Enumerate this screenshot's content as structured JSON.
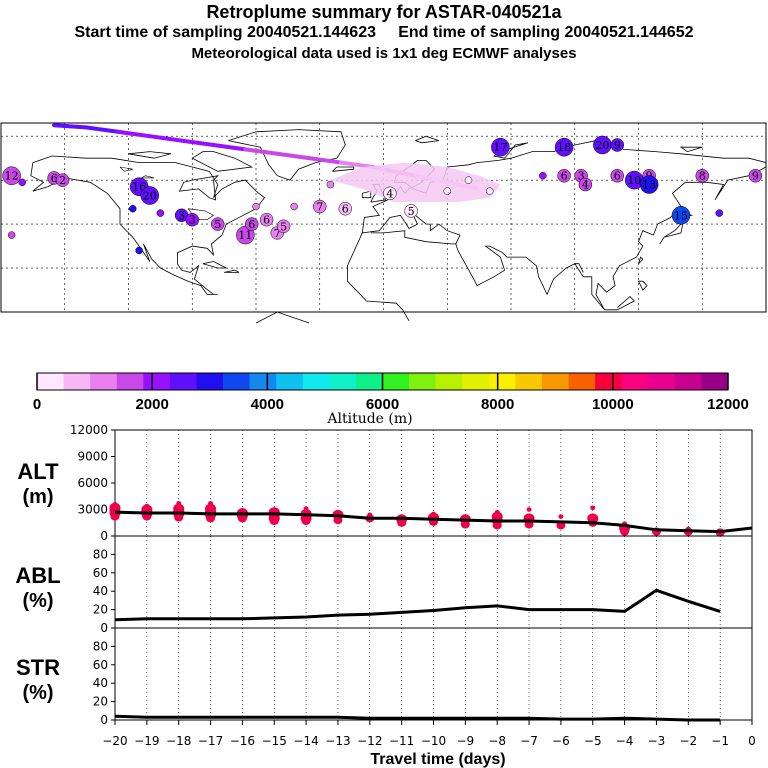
{
  "header": {
    "title": "Retroplume summary for ASTAR-040521a",
    "start_label": "Start time of sampling 20040521.144623",
    "end_label": "End time of sampling 20040521.144652",
    "met_label": "Meteorological data used is 1x1 deg ECMWF analyses"
  },
  "map": {
    "land_color": "#ffffff",
    "clusters": [
      {
        "label": "12",
        "lon": -175,
        "lat": 62,
        "alt": 1600
      },
      {
        "label": "",
        "lon": -170,
        "lat": 59,
        "alt": 2100
      },
      {
        "label": "6",
        "lon": -155,
        "lat": 61,
        "alt": 1700
      },
      {
        "label": "2",
        "lon": -151,
        "lat": 60,
        "alt": 1800
      },
      {
        "label": "16",
        "lon": -115,
        "lat": 57,
        "alt": 2400
      },
      {
        "label": "",
        "lon": -118,
        "lat": 47,
        "alt": 3200
      },
      {
        "label": "20",
        "lon": -110,
        "lat": 53,
        "alt": 2600
      },
      {
        "label": "",
        "lon": -105,
        "lat": 45,
        "alt": 2300
      },
      {
        "label": "3",
        "lon": -95,
        "lat": 44,
        "alt": 2500
      },
      {
        "label": "3",
        "lon": -90,
        "lat": 42,
        "alt": 1900
      },
      {
        "label": "5",
        "lon": -78,
        "lat": 40,
        "alt": 1700
      },
      {
        "label": "11",
        "lon": -65,
        "lat": 35,
        "alt": 1400
      },
      {
        "label": "6",
        "lon": -62,
        "lat": 40,
        "alt": 1500
      },
      {
        "label": "6",
        "lon": -55,
        "lat": 42,
        "alt": 1300
      },
      {
        "label": "7",
        "lon": -50,
        "lat": 36,
        "alt": 1200
      },
      {
        "label": "5",
        "lon": -47,
        "lat": 39,
        "alt": 1300
      },
      {
        "label": "",
        "lon": -42,
        "lat": 48,
        "alt": 1200
      },
      {
        "label": "",
        "lon": -60,
        "lat": 48,
        "alt": 1100
      },
      {
        "label": "7",
        "lon": -30,
        "lat": 48,
        "alt": 1000
      },
      {
        "label": "",
        "lon": -25,
        "lat": 58,
        "alt": 1300
      },
      {
        "label": "6",
        "lon": -18,
        "lat": 47,
        "alt": 600
      },
      {
        "label": "4",
        "lon": 3,
        "lat": 54,
        "alt": 400
      },
      {
        "label": "5",
        "lon": 13,
        "lat": 46,
        "alt": 400
      },
      {
        "label": "",
        "lon": 30,
        "lat": 55,
        "alt": 300
      },
      {
        "label": "",
        "lon": 40,
        "lat": 60,
        "alt": 300
      },
      {
        "label": "",
        "lon": 50,
        "lat": 55,
        "alt": 300
      },
      {
        "label": "17",
        "lon": 55,
        "lat": 75,
        "alt": 2400
      },
      {
        "label": "18",
        "lon": 85,
        "lat": 75,
        "alt": 2500
      },
      {
        "label": "20",
        "lon": 103,
        "lat": 76,
        "alt": 2600
      },
      {
        "label": "9",
        "lon": 110,
        "lat": 76,
        "alt": 2500
      },
      {
        "label": "",
        "lon": 75,
        "lat": 62,
        "alt": 2300
      },
      {
        "label": "6",
        "lon": 85,
        "lat": 62,
        "alt": 1500
      },
      {
        "label": "3",
        "lon": 93,
        "lat": 62,
        "alt": 1700
      },
      {
        "label": "4",
        "lon": 95,
        "lat": 58,
        "alt": 1500
      },
      {
        "label": "6",
        "lon": 110,
        "lat": 62,
        "alt": 1700
      },
      {
        "label": "10",
        "lon": 118,
        "lat": 60,
        "alt": 2500
      },
      {
        "label": "9",
        "lon": 125,
        "lat": 62,
        "alt": 1700
      },
      {
        "label": "13",
        "lon": 125,
        "lat": 58,
        "alt": 3200
      },
      {
        "label": "8",
        "lon": 150,
        "lat": 62,
        "alt": 1600
      },
      {
        "label": "9",
        "lon": 175,
        "lat": 62,
        "alt": 1700
      },
      {
        "label": "15",
        "lon": 140,
        "lat": 44,
        "alt": 3500
      },
      {
        "label": "",
        "lon": 158,
        "lat": 45,
        "alt": 2600
      },
      {
        "label": "",
        "lon": -175,
        "lat": 35,
        "alt": 1800
      },
      {
        "label": "",
        "lon": -115,
        "lat": 28,
        "alt": 2800
      }
    ]
  },
  "colorbar": {
    "colors": [
      "#ffe8ff",
      "#f8b8f8",
      "#e880f0",
      "#c848e8",
      "#9810ff",
      "#6010ff",
      "#2010f0",
      "#1048f0",
      "#1488f0",
      "#10c0f0",
      "#10e8f0",
      "#10f0c8",
      "#10f088",
      "#30f020",
      "#80f010",
      "#b8f000",
      "#e0f000",
      "#f8f000",
      "#f8c800",
      "#f89800",
      "#f86000",
      "#f8003c",
      "#f80080",
      "#e80090",
      "#c80090",
      "#980088"
    ],
    "labels": [
      "0",
      "2000",
      "4000",
      "6000",
      "8000",
      "10000",
      "12000"
    ],
    "xlabel": "Altitude (m)"
  },
  "chart_data": [
    {
      "type": "line",
      "name": "ALT",
      "ylabel_line1": "ALT",
      "ylabel_line2": "(m)",
      "ylim": [
        0,
        12000
      ],
      "yticks": [
        "0",
        "3000",
        "6000",
        "9000",
        "12000"
      ],
      "x": [
        -20,
        -19,
        -18,
        -17,
        -16,
        -15,
        -14,
        -13,
        -12,
        -11,
        -10,
        -9,
        -8,
        -7,
        -6,
        -5,
        -4,
        -3,
        -2,
        -1,
        0
      ],
      "values": [
        2700,
        2600,
        2600,
        2500,
        2500,
        2500,
        2400,
        2300,
        2000,
        2000,
        1900,
        1800,
        1700,
        1700,
        1600,
        1500,
        1200,
        700,
        600,
        500,
        900
      ],
      "spread": [
        {
          "x": -20,
          "points": [
            3600,
            3200,
            2900,
            2600,
            2200
          ]
        },
        {
          "x": -19,
          "points": [
            3400,
            3000,
            2700,
            2500,
            2200
          ]
        },
        {
          "x": -18,
          "points": [
            3700,
            3100,
            2800,
            2500,
            2100
          ]
        },
        {
          "x": -17,
          "points": [
            3700,
            3100,
            2800,
            2400,
            2000
          ]
        },
        {
          "x": -16,
          "points": [
            2900,
            2600,
            2300,
            2000
          ]
        },
        {
          "x": -15,
          "points": [
            3000,
            2700,
            2400,
            2000,
            1700
          ]
        },
        {
          "x": -14,
          "points": [
            3100,
            2500,
            2000,
            1700
          ]
        },
        {
          "x": -13,
          "points": [
            2700,
            2400,
            1800
          ]
        },
        {
          "x": -12,
          "points": [
            2400,
            2000
          ]
        },
        {
          "x": -11,
          "points": [
            2200,
            1900,
            1500
          ]
        },
        {
          "x": -10,
          "points": [
            2500,
            2100,
            1600
          ]
        },
        {
          "x": -9,
          "points": [
            2200,
            1900,
            1300
          ]
        },
        {
          "x": -8,
          "points": [
            2700,
            2200,
            1800,
            1200
          ]
        },
        {
          "x": -7,
          "points": [
            3000,
            2000,
            1300
          ]
        },
        {
          "x": -6,
          "points": [
            2200,
            1200
          ]
        },
        {
          "x": -5,
          "points": [
            3200,
            2000,
            1500
          ]
        },
        {
          "x": -4,
          "points": [
            1400,
            900,
            500
          ]
        },
        {
          "x": -3,
          "points": [
            700,
            500
          ]
        },
        {
          "x": -2,
          "points": [
            800,
            500
          ]
        },
        {
          "x": -1,
          "points": [
            600,
            400
          ]
        }
      ]
    },
    {
      "type": "line",
      "name": "ABL",
      "ylabel_line1": "ABL",
      "ylabel_line2": "(%)",
      "ylim": [
        0,
        100
      ],
      "yticks": [
        "0",
        "20",
        "40",
        "60",
        "80"
      ],
      "x": [
        -20,
        -19,
        -18,
        -17,
        -16,
        -15,
        -14,
        -13,
        -12,
        -11,
        -10,
        -9,
        -8,
        -7,
        -6,
        -5,
        -4,
        -3,
        -2,
        -1
      ],
      "values": [
        9,
        10,
        10,
        10,
        10,
        11,
        12,
        14,
        15,
        17,
        19,
        22,
        24,
        20,
        20,
        20,
        18,
        41,
        29,
        18
      ]
    },
    {
      "type": "line",
      "name": "STR",
      "ylabel_line1": "STR",
      "ylabel_line2": "(%)",
      "ylim": [
        0,
        100
      ],
      "yticks": [
        "0",
        "20",
        "40",
        "60",
        "80"
      ],
      "x": [
        -20,
        -19,
        -18,
        -17,
        -16,
        -15,
        -14,
        -13,
        -12,
        -11,
        -10,
        -9,
        -8,
        -7,
        -6,
        -5,
        -4,
        -3,
        -2,
        -1
      ],
      "values": [
        4,
        3,
        3,
        3,
        3,
        3,
        3,
        3,
        2,
        2,
        2,
        2,
        2,
        2,
        1,
        1,
        2,
        1,
        0,
        0
      ],
      "xtick_labels": [
        "−20",
        "−19",
        "−18",
        "−17",
        "−16",
        "−15",
        "−14",
        "−13",
        "−12",
        "−11",
        "−10",
        "−9",
        "−8",
        "−7",
        "−6",
        "−5",
        "−4",
        "−3",
        "−2",
        "−1",
        "0"
      ],
      "xlabel": "Travel time (days)"
    }
  ]
}
